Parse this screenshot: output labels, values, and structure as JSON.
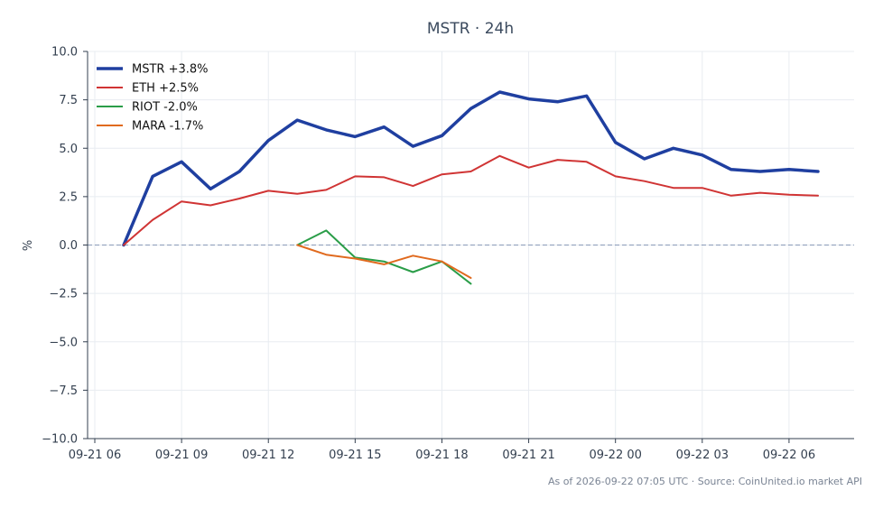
{
  "chart_data": {
    "type": "line",
    "title": "MSTR · 24h",
    "xlabel": "",
    "ylabel": "%",
    "ylim": [
      -10,
      10
    ],
    "xlim": [
      "2026-09-21 05:45",
      "2026-09-22 08:15"
    ],
    "yticks": [
      "10.0",
      "7.5",
      "5.0",
      "2.5",
      "0.0",
      "−2.5",
      "−5.0",
      "−7.5",
      "−10.0"
    ],
    "xticks": [
      "09-21 06",
      "09-21 09",
      "09-21 12",
      "09-21 15",
      "09-21 18",
      "09-21 21",
      "09-22 00",
      "09-22 03",
      "09-22 06"
    ],
    "grid": true,
    "legend_position": "top-left",
    "reference_line": 0,
    "series": [
      {
        "name": "MSTR +3.8%",
        "color": "#1f3fa0",
        "width": "thick",
        "x": [
          "2026-09-21 07:00",
          "2026-09-21 08:00",
          "2026-09-21 09:00",
          "2026-09-21 10:00",
          "2026-09-21 11:00",
          "2026-09-21 12:00",
          "2026-09-21 13:00",
          "2026-09-21 14:00",
          "2026-09-21 15:00",
          "2026-09-21 16:00",
          "2026-09-21 17:00",
          "2026-09-21 18:00",
          "2026-09-21 19:00",
          "2026-09-21 20:00",
          "2026-09-21 21:00",
          "2026-09-21 22:00",
          "2026-09-21 23:00",
          "2026-09-22 00:00",
          "2026-09-22 01:00",
          "2026-09-22 02:00",
          "2026-09-22 03:00",
          "2026-09-22 04:00",
          "2026-09-22 05:00",
          "2026-09-22 06:00",
          "2026-09-22 07:00"
        ],
        "values": [
          0.0,
          3.55,
          4.3,
          2.9,
          3.8,
          5.4,
          6.45,
          5.95,
          5.6,
          6.1,
          5.1,
          5.65,
          7.05,
          7.9,
          7.55,
          7.4,
          7.7,
          5.3,
          4.45,
          5.0,
          4.65,
          3.9,
          3.8,
          3.9,
          3.8
        ]
      },
      {
        "name": "ETH +2.5%",
        "color": "#d03434",
        "width": "normal",
        "x": [
          "2026-09-21 07:00",
          "2026-09-21 08:00",
          "2026-09-21 09:00",
          "2026-09-21 10:00",
          "2026-09-21 11:00",
          "2026-09-21 12:00",
          "2026-09-21 13:00",
          "2026-09-21 14:00",
          "2026-09-21 15:00",
          "2026-09-21 16:00",
          "2026-09-21 17:00",
          "2026-09-21 18:00",
          "2026-09-21 19:00",
          "2026-09-21 20:00",
          "2026-09-21 21:00",
          "2026-09-21 22:00",
          "2026-09-21 23:00",
          "2026-09-22 00:00",
          "2026-09-22 01:00",
          "2026-09-22 02:00",
          "2026-09-22 03:00",
          "2026-09-22 04:00",
          "2026-09-22 05:00",
          "2026-09-22 06:00",
          "2026-09-22 07:00"
        ],
        "values": [
          0.0,
          1.3,
          2.25,
          2.05,
          2.4,
          2.8,
          2.65,
          2.85,
          3.55,
          3.5,
          3.05,
          3.65,
          3.8,
          4.6,
          4.0,
          4.4,
          4.3,
          3.55,
          3.3,
          2.95,
          2.95,
          2.55,
          2.7,
          2.6,
          2.55
        ]
      },
      {
        "name": "RIOT -2.0%",
        "color": "#2a9d48",
        "width": "normal",
        "x": [
          "2026-09-21 13:00",
          "2026-09-21 14:00",
          "2026-09-21 15:00",
          "2026-09-21 16:00",
          "2026-09-21 17:00",
          "2026-09-21 18:00",
          "2026-09-21 19:00"
        ],
        "values": [
          0.0,
          0.75,
          -0.65,
          -0.85,
          -1.4,
          -0.85,
          -2.0
        ]
      },
      {
        "name": "MARA -1.7%",
        "color": "#e06a1e",
        "width": "normal",
        "x": [
          "2026-09-21 13:00",
          "2026-09-21 14:00",
          "2026-09-21 15:00",
          "2026-09-21 16:00",
          "2026-09-21 17:00",
          "2026-09-21 18:00",
          "2026-09-21 19:00"
        ],
        "values": [
          0.0,
          -0.5,
          -0.7,
          -1.0,
          -0.55,
          -0.85,
          -1.7
        ]
      }
    ],
    "footer": "As of 2026-09-22 07:05 UTC · Source: CoinUnited.io market API"
  }
}
